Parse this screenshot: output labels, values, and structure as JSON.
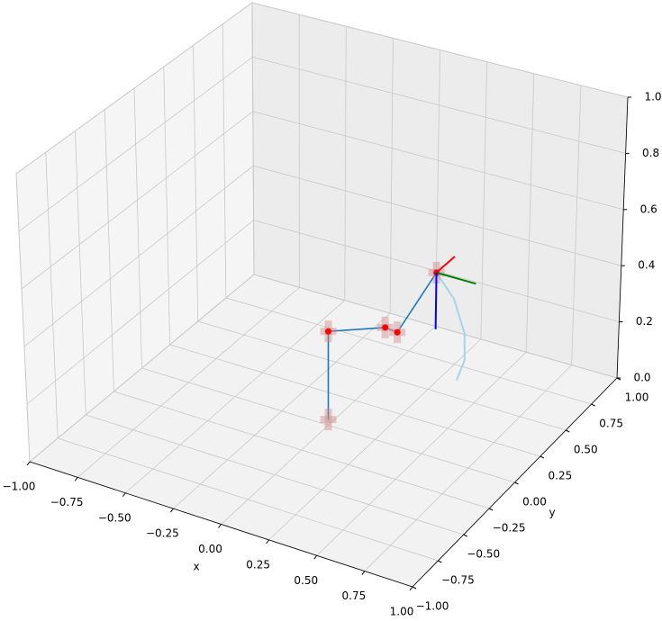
{
  "chart_data": {
    "type": "line3d",
    "xlabel": "x",
    "ylabel": "y",
    "xlim": [
      -1,
      1
    ],
    "ylim": [
      -1,
      1
    ],
    "zlim": [
      0,
      1
    ],
    "xticks": [
      {
        "value": -1,
        "label": "−1.00"
      },
      {
        "value": -0.75,
        "label": "−0.75"
      },
      {
        "value": -0.5,
        "label": "−0.50"
      },
      {
        "value": -0.25,
        "label": "−0.25"
      },
      {
        "value": 0,
        "label": "0.00"
      },
      {
        "value": 0.25,
        "label": "0.25"
      },
      {
        "value": 0.5,
        "label": "0.50"
      },
      {
        "value": 0.75,
        "label": "0.75"
      },
      {
        "value": 1,
        "label": "1.00"
      }
    ],
    "yticks": [
      {
        "value": -1,
        "label": "−1.00"
      },
      {
        "value": -0.75,
        "label": "−0.75"
      },
      {
        "value": -0.5,
        "label": "−0.50"
      },
      {
        "value": -0.25,
        "label": "−0.25"
      },
      {
        "value": 0,
        "label": "0.00"
      },
      {
        "value": 0.25,
        "label": "0.25"
      },
      {
        "value": 0.5,
        "label": "0.50"
      },
      {
        "value": 0.75,
        "label": "0.75"
      },
      {
        "value": 1,
        "label": "1.00"
      }
    ],
    "zticks": [
      {
        "value": 0,
        "label": "0.0"
      },
      {
        "value": 0.2,
        "label": "0.2"
      },
      {
        "value": 0.4,
        "label": "0.4"
      },
      {
        "value": 0.6,
        "label": "0.6"
      },
      {
        "value": 0.8,
        "label": "0.8"
      },
      {
        "value": 1,
        "label": "1.0"
      }
    ],
    "grid": true,
    "series": [
      {
        "color": "#1f77b4",
        "x": [
          0,
          0,
          0.21,
          0.28,
          0.36
        ],
        "y": [
          0,
          0,
          0.16,
          0.15,
          0.37
        ],
        "z": [
          0.02,
          0.33,
          0.33,
          0.33,
          0.48
        ]
      },
      {
        "color": "#a6d4e8",
        "x": [
          0.36,
          0.45,
          0.52,
          0.54,
          0.51
        ],
        "y": [
          0.37,
          0.38,
          0.36,
          0.33,
          0.31
        ],
        "z": [
          0.48,
          0.4,
          0.3,
          0.22,
          0.15
        ]
      }
    ],
    "frame_axes": [
      {
        "color": "#ff0000",
        "x": [
          0.36,
          0.4
        ],
        "y": [
          0.37,
          0.47
        ],
        "z": [
          0.48,
          0.51
        ]
      },
      {
        "color": "#008000",
        "x": [
          0.36,
          0.57
        ],
        "y": [
          0.37,
          0.37
        ],
        "z": [
          0.48,
          0.48
        ]
      },
      {
        "color": "#0000ff",
        "x": [
          0.36,
          0.36
        ],
        "y": [
          0.37,
          0.37
        ],
        "z": [
          0.48,
          0.28
        ]
      }
    ]
  }
}
